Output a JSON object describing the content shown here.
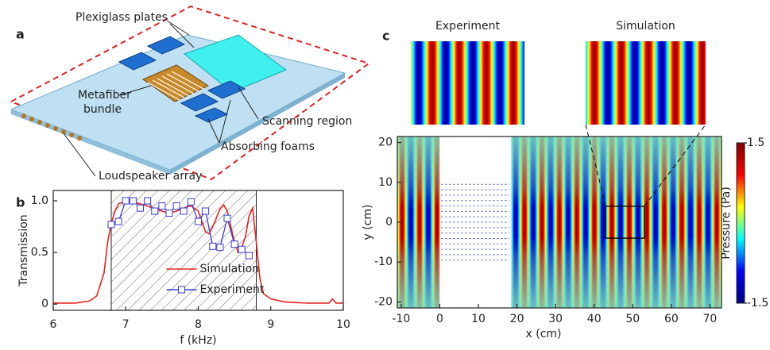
{
  "diagram": {
    "panel": "a",
    "plexiglass": "Plexiglass plates",
    "metafiber": [
      "Metafiber",
      "bundle"
    ],
    "scanning": "Scanning region",
    "foams": "Absorbing foams",
    "speakers": "Loudspeaker array"
  },
  "chart_data": [
    {
      "type": "line",
      "panel": "b",
      "xlabel": "f (kHz)",
      "ylabel": "Transmission",
      "xlim": [
        6,
        10
      ],
      "xticks": [
        6,
        7,
        8,
        9,
        10
      ],
      "ylim": [
        -0.06,
        1.1
      ],
      "yticks": [
        0,
        0.5,
        {
          "value": 1,
          "label": "1.0"
        }
      ],
      "hatched_span": [
        6.8,
        8.8
      ],
      "legend": "lower center",
      "series": [
        {
          "name": "Simulation",
          "color": "#e8231f",
          "marker": "none",
          "x": [
            6.0,
            6.3,
            6.5,
            6.6,
            6.7,
            6.75,
            6.8,
            6.85,
            6.9,
            7.0,
            7.1,
            7.2,
            7.3,
            7.4,
            7.5,
            7.6,
            7.7,
            7.8,
            7.9,
            8.0,
            8.05,
            8.1,
            8.15,
            8.2,
            8.3,
            8.35,
            8.4,
            8.45,
            8.5,
            8.55,
            8.6,
            8.65,
            8.7,
            8.75,
            8.8,
            8.85,
            8.9,
            9.0,
            9.2,
            9.5,
            9.8,
            9.85,
            9.9,
            10.0
          ],
          "values": [
            0.01,
            0.01,
            0.03,
            0.08,
            0.3,
            0.6,
            0.78,
            0.9,
            0.97,
            1.0,
            0.99,
            0.97,
            0.95,
            0.92,
            0.9,
            0.88,
            0.9,
            0.93,
            0.95,
            0.9,
            0.8,
            0.7,
            0.68,
            0.75,
            0.92,
            0.96,
            0.9,
            0.75,
            0.6,
            0.5,
            0.55,
            0.65,
            0.85,
            0.93,
            0.6,
            0.25,
            0.1,
            0.05,
            0.02,
            0.01,
            0.01,
            0.05,
            0.01,
            0.01
          ]
        },
        {
          "name": "Experiment",
          "color": "#3a3ad0",
          "marker": "square",
          "x": [
            6.8,
            6.9,
            7.0,
            7.1,
            7.2,
            7.3,
            7.4,
            7.5,
            7.6,
            7.7,
            7.8,
            7.9,
            8.0,
            8.1,
            8.2,
            8.3,
            8.4,
            8.5,
            8.6,
            8.7
          ],
          "values": [
            0.77,
            0.8,
            1.0,
            1.0,
            0.93,
            1.0,
            0.9,
            0.95,
            0.88,
            0.95,
            0.9,
            0.99,
            0.8,
            0.9,
            0.56,
            0.55,
            0.83,
            0.58,
            0.53,
            0.47
          ]
        }
      ]
    },
    {
      "type": "field",
      "panel": "c",
      "xlabel": "x (cm)",
      "ylabel": "y (cm)",
      "xlim": [
        -11,
        73
      ],
      "xticks": [
        -10,
        0,
        10,
        20,
        30,
        40,
        50,
        60,
        70
      ],
      "ylim": [
        -21.5,
        21.5
      ],
      "yticks": [
        -20,
        -10,
        0,
        10,
        20
      ],
      "blank_span": [
        0,
        18.5
      ],
      "inset_region": {
        "x": [
          43,
          53
        ],
        "y": [
          -4,
          4
        ]
      },
      "insets": [
        "Experiment",
        "Simulation"
      ],
      "colorbar": {
        "label": "Pressure (Pa)",
        "lim": [
          -1.5,
          1.5
        ],
        "ticks": [
          -1.5,
          1.5
        ],
        "colormap": [
          "#00007f",
          "#0000ff",
          "#00ffff",
          "#ffff00",
          "#ff0000",
          "#7f0000"
        ]
      }
    }
  ]
}
